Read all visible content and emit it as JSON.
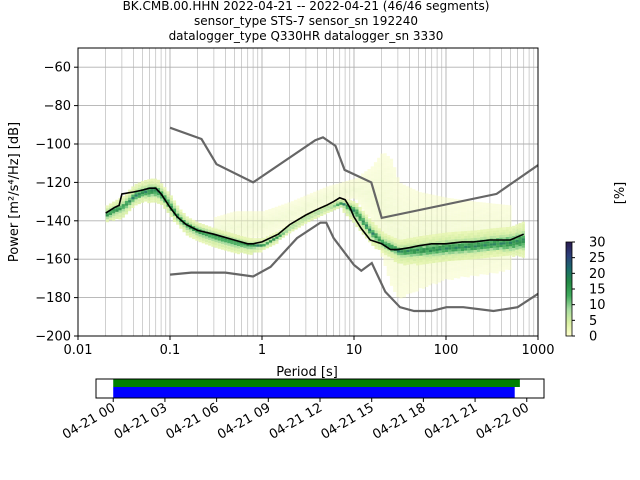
{
  "title_lines": [
    "BK.CMB.00.HHN   2022-04-21 -- 2022-04-21  (46/46 segments)",
    "sensor_type STS-7 sensor_sn 192240",
    "datalogger_type Q330HR datalogger_sn 3330"
  ],
  "chart_data": [
    {
      "type": "heatmap",
      "xlabel": "Period [s]",
      "ylabel": "Power [m²/s⁴/Hz] [dB]",
      "x_scale": "log",
      "xlim": [
        0.01,
        1000
      ],
      "ylim": [
        -200,
        -50
      ],
      "x_ticks": [
        0.01,
        0.1,
        1,
        10,
        100,
        1000
      ],
      "x_tick_labels": [
        "0.01",
        "0.1",
        "1",
        "10",
        "100",
        "1000"
      ],
      "y_ticks": [
        -200,
        -180,
        -160,
        -140,
        -120,
        -100,
        -80,
        -60
      ],
      "y_tick_labels": [
        "−200",
        "−180",
        "−160",
        "−140",
        "−120",
        "−100",
        "−80",
        "−60"
      ],
      "grid": true,
      "colorbar": {
        "label": "[%]",
        "range": [
          0,
          30
        ],
        "ticks": [
          0,
          5,
          10,
          15,
          20,
          25,
          30
        ],
        "tick_labels": [
          "0",
          "5",
          "10",
          "15",
          "20",
          "25",
          "30"
        ],
        "colormap": [
          "#ffffcc",
          "#d9f0a3",
          "#a6dba0",
          "#41ab5d",
          "#238b45",
          "#1b6b6b",
          "#2c3e7a",
          "#2a1b4f"
        ]
      },
      "mean_curve": {
        "color": "#000000",
        "x": [
          0.02,
          0.025,
          0.028,
          0.03,
          0.04,
          0.05,
          0.06,
          0.07,
          0.08,
          0.1,
          0.12,
          0.15,
          0.2,
          0.3,
          0.5,
          0.7,
          0.8,
          1,
          1.5,
          2,
          3,
          4,
          5,
          6,
          7,
          8,
          9,
          10,
          12,
          15,
          20,
          25,
          30,
          40,
          50,
          70,
          100,
          150,
          200,
          300,
          500,
          700
        ],
        "y": [
          -136,
          -133,
          -132,
          -126,
          -125,
          -124,
          -123,
          -123,
          -126,
          -133,
          -138,
          -142,
          -145,
          -147,
          -150,
          -152,
          -152,
          -151,
          -147,
          -142,
          -137,
          -134,
          -132,
          -130,
          -128,
          -129,
          -133,
          -138,
          -144,
          -150,
          -152,
          -155,
          -155,
          -154,
          -153,
          -152,
          -152,
          -151,
          -151,
          -150,
          -150,
          -147
        ]
      },
      "nlnm": {
        "color": "#666666",
        "x": [
          0.1,
          0.17,
          0.4,
          0.8,
          1.24,
          2.4,
          4.3,
          5,
          6,
          10,
          12,
          15.6,
          21.9,
          31.6,
          45,
          70,
          101,
          154,
          328,
          600,
          1000
        ],
        "y": [
          -168,
          -167,
          -167,
          -169,
          -164,
          -149,
          -141,
          -141,
          -149,
          -163,
          -166,
          -162,
          -177,
          -185,
          -187,
          -187,
          -185,
          -185,
          -187,
          -185,
          -178
        ]
      },
      "nhnm": {
        "color": "#666666",
        "x": [
          0.1,
          0.22,
          0.32,
          0.8,
          3.8,
          4.6,
          6.3,
          7.9,
          15.4,
          20,
          354.8,
          1000
        ],
        "y": [
          -91.5,
          -97.4,
          -110.5,
          -120,
          -98,
          -96.5,
          -101,
          -113.5,
          -120,
          -138.5,
          -126,
          -111
        ]
      },
      "density_bands": [
        {
          "x": [
            0.02,
            0.03,
            0.04,
            0.05,
            0.06,
            0.07,
            0.08,
            0.1,
            0.12,
            0.15,
            0.2,
            0.3,
            0.5,
            0.7,
            1,
            1.5,
            2,
            3,
            5,
            7,
            10,
            15,
            20,
            30,
            50,
            100,
            200,
            300,
            500,
            700
          ],
          "ylow": [
            -140,
            -138,
            -132,
            -130,
            -130,
            -130,
            -132,
            -138,
            -142,
            -147,
            -150,
            -153,
            -156,
            -157,
            -155,
            -150,
            -145,
            -140,
            -135,
            -133,
            -142,
            -152,
            -156,
            -162,
            -162,
            -161,
            -160,
            -158,
            -158,
            -158
          ],
          "yhigh": [
            -132,
            -127,
            -121,
            -119,
            -118,
            -118,
            -121,
            -127,
            -133,
            -138,
            -141,
            -144,
            -147,
            -149,
            -149,
            -145,
            -141,
            -136,
            -131,
            -128,
            -130,
            -140,
            -146,
            -150,
            -148,
            -146,
            -145,
            -144,
            -143,
            -140
          ],
          "level": 0.25
        },
        {
          "x": [
            0.02,
            0.03,
            0.04,
            0.05,
            0.06,
            0.07,
            0.08,
            0.1,
            0.12,
            0.15,
            0.2,
            0.3,
            0.5,
            0.7,
            1,
            1.5,
            2,
            3,
            5,
            7,
            10,
            15,
            20,
            30,
            50,
            100,
            200,
            300,
            500,
            700
          ],
          "ylow": [
            -138,
            -134,
            -129,
            -127,
            -127,
            -127,
            -129,
            -135,
            -140,
            -144,
            -147,
            -150,
            -153,
            -154,
            -153,
            -148,
            -143,
            -138,
            -133,
            -131,
            -137,
            -148,
            -153,
            -158,
            -158,
            -157,
            -156,
            -155,
            -155,
            -154
          ],
          "yhigh": [
            -134,
            -130,
            -124,
            -122,
            -121,
            -121,
            -124,
            -130,
            -136,
            -140,
            -143,
            -146,
            -149,
            -151,
            -151,
            -146,
            -142,
            -137,
            -132,
            -129,
            -132,
            -143,
            -149,
            -153,
            -152,
            -150,
            -149,
            -148,
            -147,
            -145
          ],
          "level": 0.6
        }
      ],
      "ghost_band": {
        "x": [
          0.3,
          0.5,
          1,
          2,
          5,
          10,
          15,
          20,
          25,
          30,
          50,
          100,
          200,
          500
        ],
        "ylow": [
          -150,
          -150,
          -148,
          -142,
          -132,
          -128,
          -140,
          -160,
          -175,
          -180,
          -175,
          -170,
          -168,
          -165
        ],
        "yhigh": [
          -138,
          -135,
          -135,
          -130,
          -122,
          -118,
          -112,
          -104,
          -108,
          -120,
          -125,
          -128,
          -130,
          -132
        ],
        "level": 0.08
      }
    },
    {
      "type": "bar",
      "x_tick_labels": [
        "04-21 00",
        "04-21 03",
        "04-21 06",
        "04-21 09",
        "04-21 12",
        "04-21 15",
        "04-21 18",
        "04-21 21",
        "04-22 00"
      ],
      "x_range_hours": [
        -1,
        25
      ],
      "series": [
        {
          "color": "#008000",
          "start_hour": 0,
          "end_hour": 23.6
        },
        {
          "color": "#0000ff",
          "start_hour": 0,
          "end_hour": 23.3
        }
      ]
    }
  ]
}
